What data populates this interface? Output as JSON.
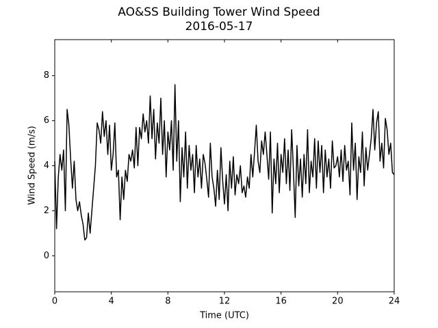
{
  "chart_data": {
    "type": "line",
    "title": "AO&SS Building Tower Wind Speed",
    "subtitle": "2016-05-17",
    "x_label": "Time (UTC)",
    "y_label": "Wind Speed (m/s)",
    "xlim": [
      0,
      24
    ],
    "xticks": [
      0,
      4,
      8,
      12,
      16,
      20,
      24
    ],
    "ylim": [
      -1.6,
      9.6
    ],
    "yticks": [
      0,
      2,
      4,
      6,
      8
    ],
    "grid": false,
    "x": [
      0,
      0.125,
      0.25,
      0.375,
      0.5,
      0.625,
      0.75,
      0.875,
      1,
      1.125,
      1.25,
      1.375,
      1.5,
      1.625,
      1.75,
      1.875,
      2,
      2.125,
      2.25,
      2.375,
      2.5,
      2.625,
      2.75,
      2.875,
      3,
      3.125,
      3.25,
      3.375,
      3.5,
      3.625,
      3.75,
      3.875,
      4,
      4.125,
      4.25,
      4.375,
      4.5,
      4.625,
      4.75,
      4.875,
      5,
      5.125,
      5.25,
      5.375,
      5.5,
      5.625,
      5.75,
      5.875,
      6,
      6.125,
      6.25,
      6.375,
      6.5,
      6.625,
      6.75,
      6.875,
      7,
      7.125,
      7.25,
      7.375,
      7.5,
      7.625,
      7.75,
      7.875,
      8,
      8.125,
      8.25,
      8.375,
      8.5,
      8.625,
      8.75,
      8.875,
      9,
      9.125,
      9.25,
      9.375,
      9.5,
      9.625,
      9.75,
      9.875,
      10,
      10.125,
      10.25,
      10.375,
      10.5,
      10.625,
      10.75,
      10.875,
      11,
      11.125,
      11.25,
      11.375,
      11.5,
      11.625,
      11.75,
      11.875,
      12,
      12.125,
      12.25,
      12.375,
      12.5,
      12.625,
      12.75,
      12.875,
      13,
      13.125,
      13.25,
      13.375,
      13.5,
      13.625,
      13.75,
      13.875,
      14,
      14.125,
      14.25,
      14.375,
      14.5,
      14.625,
      14.75,
      14.875,
      15,
      15.125,
      15.25,
      15.375,
      15.5,
      15.625,
      15.75,
      15.875,
      16,
      16.125,
      16.25,
      16.375,
      16.5,
      16.625,
      16.75,
      16.875,
      17,
      17.125,
      17.25,
      17.375,
      17.5,
      17.625,
      17.75,
      17.875,
      18,
      18.125,
      18.25,
      18.375,
      18.5,
      18.625,
      18.75,
      18.875,
      19,
      19.125,
      19.25,
      19.375,
      19.5,
      19.625,
      19.75,
      19.875,
      20,
      20.125,
      20.25,
      20.375,
      20.5,
      20.625,
      20.75,
      20.875,
      21,
      21.125,
      21.25,
      21.375,
      21.5,
      21.625,
      21.75,
      21.875,
      22,
      22.125,
      22.25,
      22.375,
      22.5,
      22.625,
      22.75,
      22.875,
      23,
      23.125,
      23.25,
      23.375,
      23.5,
      23.625,
      23.75,
      23.875,
      24
    ],
    "series": [
      {
        "color": "#000000",
        "values": [
          4.2,
          1.2,
          3.5,
          4.5,
          3.8,
          4.7,
          2,
          6.5,
          5.8,
          4.3,
          3,
          4.2,
          2.5,
          2,
          2.4,
          1.8,
          1.4,
          0.7,
          0.8,
          1.9,
          1,
          2,
          3,
          4,
          5.9,
          5.6,
          5,
          6.4,
          5.3,
          6,
          4.5,
          5.8,
          3.8,
          4.5,
          5.9,
          3.5,
          3.8,
          1.6,
          3.5,
          2.5,
          3.8,
          3.3,
          4.5,
          4.2,
          4.7,
          3.9,
          5.7,
          4,
          5.7,
          5.2,
          6.3,
          5.5,
          6,
          5,
          7.1,
          5.2,
          6.5,
          4.3,
          5.9,
          5,
          7,
          4.5,
          6,
          3.5,
          5.5,
          4.7,
          6,
          3.8,
          7.6,
          4.2,
          6,
          2.4,
          4.8,
          3.5,
          5.5,
          3,
          4.9,
          3.8,
          4.5,
          2.8,
          4.9,
          3.5,
          4.3,
          3,
          4.5,
          4.1,
          3.4,
          2.6,
          5,
          3.5,
          3,
          2.2,
          3.8,
          2.5,
          4.8,
          3.3,
          2.3,
          3.6,
          2,
          4.2,
          3,
          4.4,
          2.7,
          3.6,
          3.2,
          4,
          2.8,
          3.1,
          2.6,
          3.5,
          3,
          4.5,
          3.5,
          4.6,
          5.8,
          4.2,
          3.7,
          5.1,
          4.5,
          5.5,
          4.5,
          3.4,
          5.5,
          1.9,
          4.3,
          3.2,
          5,
          2.8,
          4.5,
          3.7,
          5.2,
          3.2,
          4.7,
          2.9,
          5.6,
          3.8,
          1.7,
          4.9,
          3.1,
          4.3,
          2.6,
          4.5,
          3.2,
          5.6,
          2.8,
          4.2,
          3.5,
          5.2,
          3,
          5.1,
          3.7,
          4.9,
          2.8,
          4.7,
          3.5,
          4.3,
          3,
          5.1,
          3.9,
          4,
          4.4,
          3.5,
          4.7,
          3.3,
          4.9,
          3.8,
          4.2,
          2.7,
          5.9,
          3.8,
          5,
          2.5,
          4.4,
          3.7,
          5.5,
          3.1,
          4.8,
          3.8,
          4.5,
          5.2,
          6.5,
          4.7,
          5.9,
          6.4,
          4.2,
          5,
          3.9,
          6.1,
          5.6,
          4.5,
          5,
          3.7,
          3.6
        ]
      }
    ]
  }
}
